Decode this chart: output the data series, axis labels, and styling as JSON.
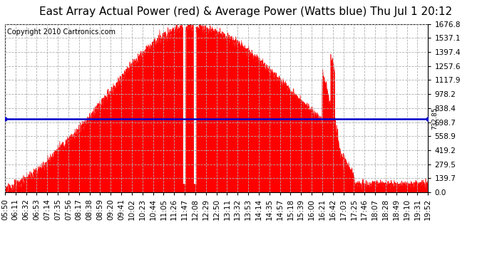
{
  "title": "East Array Actual Power (red) & Average Power (Watts blue) Thu Jul 1 20:12",
  "copyright": "Copyright 2010 Cartronics.com",
  "avg_power": 732.85,
  "ymax": 1676.8,
  "ymin": 0.0,
  "yticks": [
    0.0,
    139.7,
    279.5,
    419.2,
    558.9,
    698.7,
    838.4,
    978.2,
    1117.9,
    1257.6,
    1397.4,
    1537.1,
    1676.8
  ],
  "bg_color": "#ffffff",
  "plot_bg_color": "#ffffff",
  "grid_color": "#b0b0b0",
  "fill_color": "#ff0000",
  "line_color": "#ff0000",
  "avg_line_color": "#0000cc",
  "xtick_labels": [
    "05:50",
    "06:11",
    "06:32",
    "06:53",
    "07:14",
    "07:35",
    "07:56",
    "08:17",
    "08:38",
    "08:59",
    "09:20",
    "09:41",
    "10:02",
    "10:23",
    "10:44",
    "11:05",
    "11:26",
    "11:47",
    "12:08",
    "12:29",
    "12:50",
    "13:11",
    "13:32",
    "13:53",
    "14:14",
    "14:35",
    "14:57",
    "15:18",
    "15:39",
    "16:00",
    "16:21",
    "16:42",
    "17:03",
    "17:25",
    "17:46",
    "18:07",
    "18:28",
    "18:49",
    "19:10",
    "19:31",
    "19:52"
  ],
  "title_fontsize": 11,
  "tick_fontsize": 7.5,
  "copyright_fontsize": 7
}
